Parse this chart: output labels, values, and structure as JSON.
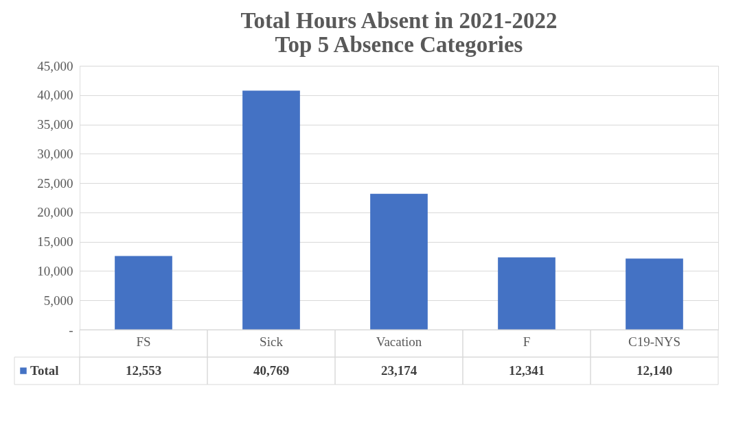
{
  "chart_data": {
    "type": "bar",
    "title": [
      "Total Hours Absent in 2021-2022",
      "Top 5 Absence Categories"
    ],
    "categories": [
      "FS",
      "Sick",
      "Vacation",
      "F",
      "C19-NYS"
    ],
    "series": [
      {
        "name": "Total",
        "color": "#4472c4",
        "values": [
          12553,
          40769,
          23174,
          12341,
          12140
        ],
        "value_labels": [
          "12,553",
          "40,769",
          "23,174",
          "12,341",
          "12,140"
        ]
      }
    ],
    "ylim": [
      0,
      45000
    ],
    "yticks": [
      {
        "value": 0,
        "label": "-"
      },
      {
        "value": 5000,
        "label": "5,000"
      },
      {
        "value": 10000,
        "label": "10,000"
      },
      {
        "value": 15000,
        "label": "15,000"
      },
      {
        "value": 20000,
        "label": "20,000"
      },
      {
        "value": 25000,
        "label": "25,000"
      },
      {
        "value": 30000,
        "label": "30,000"
      },
      {
        "value": 35000,
        "label": "35,000"
      },
      {
        "value": 40000,
        "label": "40,000"
      },
      {
        "value": 45000,
        "label": "45,000"
      }
    ],
    "grid": "y",
    "legend": "bottom left"
  }
}
